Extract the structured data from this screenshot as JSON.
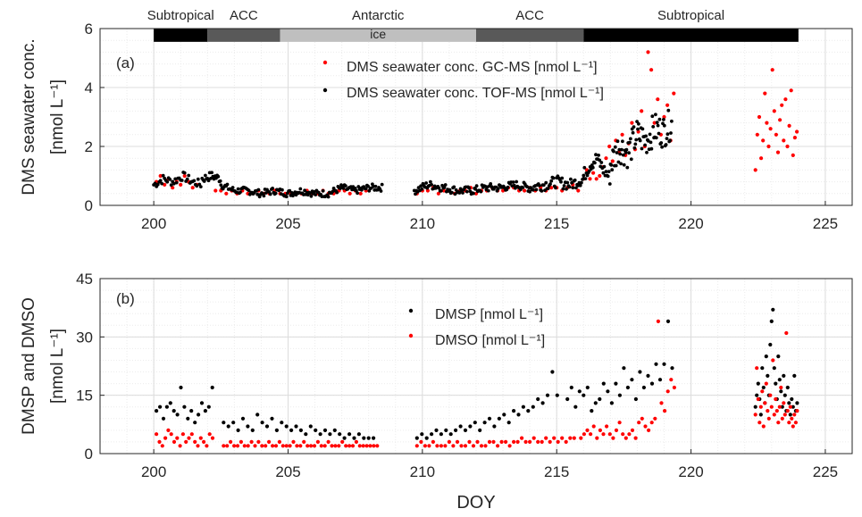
{
  "xlabel": "DOY",
  "colors": {
    "black": "#000000",
    "red": "#ff0000",
    "grid": "#dcdcdc",
    "minor_grid": "#ececec",
    "axis": "#262626",
    "acc": "#595959",
    "antarctic": "#bfbfbf"
  },
  "regions": [
    {
      "label": "Subtropical",
      "x0": 200,
      "x1": 202,
      "shade": "black",
      "bar_text": ""
    },
    {
      "label": "ACC",
      "x0": 202,
      "x1": 204.7,
      "shade": "acc",
      "bar_text": ""
    },
    {
      "label": "Antarctic",
      "x0": 204.7,
      "x1": 212,
      "shade": "antarctic",
      "bar_text": "ice"
    },
    {
      "label": "ACC",
      "x0": 212,
      "x1": 216,
      "shade": "acc",
      "bar_text": ""
    },
    {
      "label": "Subtropical",
      "x0": 216,
      "x1": 224,
      "shade": "black",
      "bar_text": ""
    }
  ],
  "chart_data": [
    {
      "type": "scatter",
      "panel_label": "(a)",
      "ylabel_line1": "DMS seawater conc.",
      "ylabel_line2": "[nmol L⁻¹]",
      "xlim": [
        198,
        226
      ],
      "ylim": [
        0,
        6
      ],
      "xticks": [
        200,
        205,
        210,
        215,
        220,
        225
      ],
      "yticks": [
        0,
        2,
        4,
        6
      ],
      "grid": true,
      "legend": "top-center",
      "series": [
        {
          "name": "DMS seawater conc. GC-MS [nmol L⁻¹]",
          "color": "red",
          "style": "sparse",
          "segments": [
            {
              "x0": 200.1,
              "x1": 201.6,
              "step": 0.15,
              "y": [
                0.8,
                1.0,
                0.7,
                0.9,
                0.6,
                0.8,
                0.7,
                1.0,
                0.8,
                0.6,
                0.7
              ]
            },
            {
              "x0": 202.3,
              "x1": 208.0,
              "step": 0.2,
              "y": [
                0.5,
                0.5,
                0.4,
                0.5,
                0.4,
                0.5,
                0.4,
                0.4,
                0.5,
                0.4,
                0.4,
                0.5,
                0.4,
                0.4,
                0.4,
                0.4,
                0.4,
                0.5,
                0.4,
                0.4,
                0.5,
                0.4,
                0.4,
                0.5,
                0.5,
                0.4,
                0.5,
                0.4,
                0.5
              ]
            },
            {
              "x0": 209.8,
              "x1": 215.8,
              "step": 0.2,
              "y": [
                0.4,
                0.5,
                0.5,
                0.6,
                0.4,
                0.5,
                0.5,
                0.4,
                0.5,
                0.5,
                0.6,
                0.4,
                0.5,
                0.5,
                0.6,
                0.5,
                0.5,
                0.6,
                0.6,
                0.5,
                0.5,
                0.6,
                0.5,
                0.6,
                0.5,
                0.6,
                0.6,
                0.5,
                0.6,
                0.7,
                0.5
              ]
            },
            {
              "x0": 216.0,
              "x1": 219.4,
              "step": 0.12,
              "y": [
                0.9,
                1.2,
                0.9,
                1.1,
                0.9,
                1.0,
                1.3,
                1.6,
                2.0,
                1.5,
                2.2,
                1.8,
                2.4,
                1.7,
                2.1,
                2.8,
                1.9,
                2.5,
                3.2,
                2.0,
                5.2,
                4.6,
                2.8,
                3.6,
                2.4,
                3.0,
                3.4,
                2.2,
                3.8
              ]
            },
            {
              "x0": 222.4,
              "x1": 224.0,
              "step": 0.07,
              "y": [
                1.2,
                2.4,
                3.0,
                1.6,
                2.2,
                3.8,
                2.8,
                2.0,
                2.6,
                4.6,
                3.2,
                2.4,
                1.8,
                2.9,
                3.4,
                2.2,
                3.6,
                2.0,
                2.7,
                3.9,
                1.7,
                2.3,
                2.5
              ]
            }
          ]
        },
        {
          "name": "DMS seawater conc. TOF-MS [nmol L⁻¹]",
          "color": "black",
          "style": "dense",
          "segments": [
            {
              "x0": 200.0,
              "x1": 201.8,
              "step": 0.05,
              "base": [
                0.7,
                0.9,
                0.8,
                1.0,
                0.8,
                0.7
              ],
              "jit": 0.15
            },
            {
              "x0": 201.8,
              "x1": 202.5,
              "step": 0.04,
              "base": [
                0.9,
                1.0,
                0.9
              ],
              "jit": 0.15
            },
            {
              "x0": 202.5,
              "x1": 208.5,
              "step": 0.04,
              "base": [
                0.7,
                0.5,
                0.5,
                0.4,
                0.5,
                0.4,
                0.5,
                0.4,
                0.4,
                0.6,
                0.5,
                0.6,
                0.6
              ],
              "jit": 0.12
            },
            {
              "x0": 209.7,
              "x1": 214.0,
              "step": 0.04,
              "base": [
                0.5,
                0.7,
                0.6,
                0.5,
                0.5,
                0.6,
                0.6,
                0.7,
                0.6
              ],
              "jit": 0.14
            },
            {
              "x0": 214.0,
              "x1": 216.0,
              "step": 0.04,
              "base": [
                0.6,
                0.7,
                0.8,
                0.7,
                0.9
              ],
              "jit": 0.2
            },
            {
              "x0": 216.0,
              "x1": 217.0,
              "step": 0.035,
              "base": [
                1.0,
                1.4,
                1.6,
                1.2,
                0.9
              ],
              "jit": 0.25
            },
            {
              "x0": 217.0,
              "x1": 219.3,
              "step": 0.03,
              "base": [
                1.4,
                2.0,
                1.8,
                2.4,
                2.2,
                2.6,
                2.5,
                2.8
              ],
              "jit": 0.55
            }
          ]
        }
      ]
    },
    {
      "type": "scatter",
      "panel_label": "(b)",
      "ylabel_line1": "DMSP and DMSO",
      "ylabel_line2": "[nmol L⁻¹]",
      "xlim": [
        198,
        226
      ],
      "ylim": [
        0,
        45
      ],
      "xticks": [
        200,
        205,
        210,
        215,
        220,
        225
      ],
      "yticks": [
        0,
        15,
        30,
        45
      ],
      "grid": true,
      "legend": "top-center",
      "series": [
        {
          "name": "DMSP [nmol L⁻¹]",
          "color": "black",
          "style": "sparse",
          "segments": [
            {
              "x0": 200.1,
              "x1": 202.2,
              "step": 0.13,
              "y": [
                11,
                12,
                9,
                12,
                13,
                11,
                10,
                17,
                12,
                9,
                11,
                8,
                10,
                13,
                11,
                12,
                17
              ]
            },
            {
              "x0": 202.6,
              "x1": 208.4,
              "step": 0.18,
              "y": [
                8,
                7,
                8,
                6,
                9,
                7,
                6,
                10,
                8,
                7,
                9,
                6,
                8,
                7,
                6,
                7,
                6,
                5,
                7,
                6,
                5,
                6,
                5,
                6,
                5,
                4,
                5,
                4,
                5,
                4,
                4,
                4
              ]
            },
            {
              "x0": 209.8,
              "x1": 215.1,
              "step": 0.18,
              "y": [
                4,
                5,
                4,
                5,
                6,
                5,
                6,
                5,
                6,
                7,
                6,
                7,
                8,
                6,
                8,
                9,
                7,
                9,
                10,
                8,
                11,
                10,
                12,
                11,
                12,
                14,
                13,
                15,
                21,
                15
              ]
            },
            {
              "x0": 215.4,
              "x1": 219.4,
              "step": 0.15,
              "y": [
                14,
                17,
                12,
                16,
                15,
                17,
                11,
                13,
                14,
                18,
                16,
                13,
                18,
                15,
                22,
                17,
                19,
                14,
                21,
                17,
                20,
                18,
                23,
                19,
                23,
                34,
                22,
                24
              ]
            },
            {
              "x0": 222.4,
              "x1": 224.0,
              "step": 0.05,
              "y": [
                12,
                15,
                18,
                14,
                10,
                22,
                17,
                13,
                25,
                20,
                15,
                28,
                34,
                37,
                22,
                18,
                14,
                25,
                19,
                16,
                12,
                20,
                15,
                11,
                17,
                13,
                10,
                14,
                12,
                20,
                11,
                13
              ]
            }
          ]
        },
        {
          "name": "DMSO [nmol L⁻¹]",
          "color": "red",
          "style": "sparse",
          "segments": [
            {
              "x0": 200.1,
              "x1": 202.2,
              "step": 0.11,
              "y": [
                5,
                3,
                2,
                4,
                6,
                5,
                3,
                4,
                2,
                5,
                3,
                4,
                5,
                3,
                2,
                4,
                3,
                2,
                5,
                4
              ]
            },
            {
              "x0": 202.6,
              "x1": 208.4,
              "step": 0.13,
              "y": [
                2,
                2,
                3,
                2,
                2,
                3,
                2,
                2,
                3,
                2,
                3,
                2,
                2,
                3,
                2,
                2,
                3,
                2,
                2,
                2,
                3,
                2,
                2,
                3,
                2,
                2,
                2,
                3,
                2,
                2,
                3,
                2,
                2,
                2,
                3,
                2,
                2,
                2,
                3,
                2,
                2,
                2,
                2,
                2,
                2
              ]
            },
            {
              "x0": 209.8,
              "x1": 215.8,
              "step": 0.15,
              "y": [
                2,
                3,
                2,
                2,
                3,
                2,
                2,
                2,
                3,
                2,
                3,
                2,
                2,
                3,
                2,
                3,
                2,
                2,
                3,
                3,
                2,
                3,
                3,
                2,
                3,
                3,
                4,
                3,
                3,
                4,
                3,
                3,
                4,
                3,
                4,
                3,
                4,
                3,
                4,
                4
              ]
            },
            {
              "x0": 215.9,
              "x1": 219.4,
              "step": 0.12,
              "y": [
                4,
                5,
                6,
                5,
                7,
                4,
                6,
                5,
                7,
                5,
                4,
                6,
                8,
                5,
                4,
                5,
                6,
                4,
                8,
                9,
                7,
                6,
                8,
                9,
                34,
                13,
                11,
                16,
                19,
                17
              ]
            },
            {
              "x0": 222.4,
              "x1": 224.0,
              "step": 0.05,
              "y": [
                10,
                22,
                14,
                8,
                12,
                16,
                7,
                13,
                18,
                11,
                9,
                15,
                12,
                24,
                10,
                14,
                11,
                8,
                12,
                17,
                9,
                13,
                10,
                31,
                11,
                8,
                12,
                9,
                7,
                10,
                8,
                11
              ]
            }
          ]
        }
      ]
    }
  ]
}
